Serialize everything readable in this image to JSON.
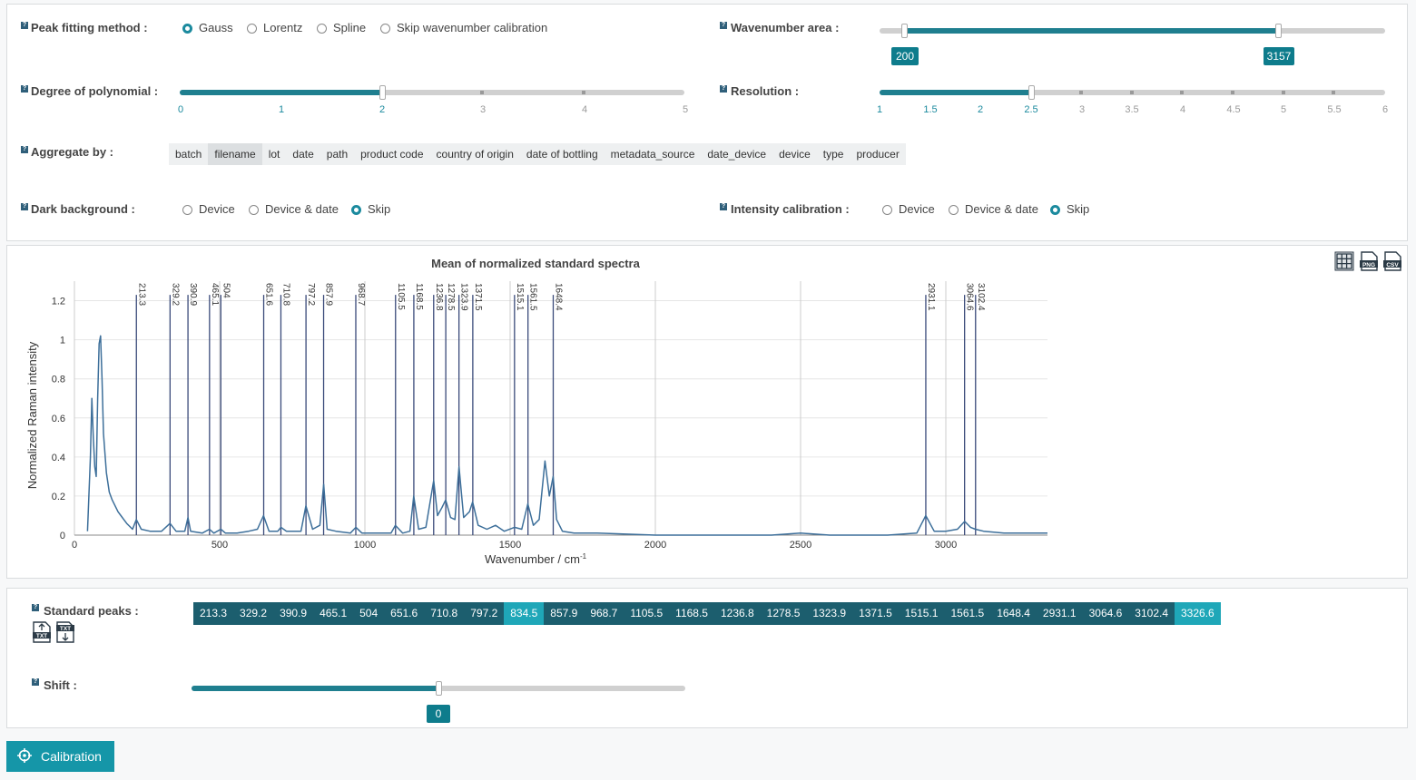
{
  "settings": {
    "peak_fitting": {
      "label": "Peak fitting method :",
      "options": [
        "Gauss",
        "Lorentz",
        "Spline",
        "Skip wavenumber calibration"
      ],
      "selected": "Gauss"
    },
    "wavenumber_area": {
      "label": "Wavenumber area :",
      "min_value": "200",
      "max_value": "3157",
      "range_min": 0,
      "range_max": 4000
    },
    "degree_polynomial": {
      "label": "Degree of polynomial :",
      "value": 2,
      "ticks": [
        "0",
        "1",
        "2",
        "3",
        "4",
        "5"
      ]
    },
    "resolution": {
      "label": "Resolution :",
      "value": 2.5,
      "ticks": [
        "1",
        "1.5",
        "2",
        "2.5",
        "3",
        "3.5",
        "4",
        "4.5",
        "5",
        "5.5",
        "6"
      ]
    },
    "aggregate": {
      "label": "Aggregate by :",
      "options": [
        "batch",
        "filename",
        "lot",
        "date",
        "path",
        "product code",
        "country of origin",
        "date of bottling",
        "metadata_source",
        "date_device",
        "device",
        "type",
        "producer"
      ],
      "selected": "filename"
    },
    "dark_background": {
      "label": "Dark background :",
      "options": [
        "Device",
        "Device & date",
        "Skip"
      ],
      "selected": "Skip"
    },
    "intensity_calibration": {
      "label": "Intensity calibration :",
      "options": [
        "Device",
        "Device & date",
        "Skip"
      ],
      "selected": "Skip"
    }
  },
  "toolbar": {
    "icons": [
      "grid-icon",
      "png-download-icon",
      "csv-download-icon"
    ]
  },
  "chart_data": {
    "type": "line",
    "title": "Mean of normalized standard spectra",
    "xlabel": "Wavenumber / cm-1",
    "ylabel": "Normalized Raman intensity",
    "xlim": [
      0,
      3350
    ],
    "ylim": [
      0,
      1.3
    ],
    "x_ticks": [
      "0",
      "500",
      "1000",
      "1500",
      "2000",
      "2500",
      "3000"
    ],
    "y_ticks": [
      "0",
      "0.2",
      "0.4",
      "0.6",
      "0.8",
      "1",
      "1.2"
    ],
    "grid": true,
    "peak_lines": [
      213.3,
      329.2,
      390.9,
      465.1,
      504,
      651.6,
      710.8,
      797.2,
      857.9,
      968.7,
      1105.5,
      1168.5,
      1236.8,
      1278.5,
      1323.9,
      1371.5,
      1515.1,
      1561.5,
      1648.4,
      2931.1,
      3064.6,
      3102.4
    ],
    "peak_labels": [
      "213.3",
      "329.2",
      "390.9",
      "465.1",
      "504",
      "651.6",
      "710.8",
      "797.2",
      "857.9",
      "968.7",
      "1105.5",
      "1168.5",
      "1236.8",
      "1278.5",
      "1323.9",
      "1371.5",
      "1515.1",
      "1561.5",
      "1648.4",
      "2931.1",
      "3064.6",
      "3102.4"
    ],
    "series": [
      {
        "x": [
          45,
          55,
          60,
          65,
          70,
          75,
          80,
          85,
          90,
          95,
          100,
          110,
          120,
          130,
          140,
          150,
          160,
          170,
          180,
          200,
          213,
          230,
          260,
          300,
          329,
          350,
          380,
          391,
          400,
          440,
          465,
          480,
          504,
          520,
          560,
          600,
          630,
          651,
          670,
          700,
          711,
          730,
          780,
          797,
          820,
          845,
          858,
          870,
          900,
          950,
          969,
          990,
          1050,
          1090,
          1105,
          1130,
          1155,
          1168,
          1185,
          1210,
          1237,
          1250,
          1265,
          1278,
          1295,
          1310,
          1324,
          1340,
          1360,
          1371,
          1390,
          1420,
          1450,
          1480,
          1515,
          1540,
          1561,
          1580,
          1600,
          1620,
          1635,
          1648,
          1660,
          1680,
          1720,
          1800,
          2000,
          2400,
          2500,
          2600,
          2800,
          2900,
          2931,
          2960,
          3000,
          3040,
          3065,
          3085,
          3102,
          3130,
          3200,
          3350
        ],
        "y": [
          0.02,
          0.4,
          0.7,
          0.5,
          0.35,
          0.3,
          0.7,
          0.98,
          1.02,
          0.8,
          0.52,
          0.32,
          0.22,
          0.18,
          0.15,
          0.12,
          0.1,
          0.08,
          0.06,
          0.03,
          0.08,
          0.03,
          0.02,
          0.02,
          0.06,
          0.02,
          0.02,
          0.09,
          0.02,
          0.01,
          0.03,
          0.01,
          0.03,
          0.01,
          0.01,
          0.02,
          0.03,
          0.1,
          0.02,
          0.02,
          0.04,
          0.02,
          0.02,
          0.15,
          0.03,
          0.05,
          0.26,
          0.03,
          0.02,
          0.01,
          0.04,
          0.01,
          0.01,
          0.01,
          0.05,
          0.01,
          0.02,
          0.2,
          0.03,
          0.04,
          0.28,
          0.1,
          0.14,
          0.18,
          0.09,
          0.08,
          0.35,
          0.09,
          0.12,
          0.17,
          0.05,
          0.03,
          0.05,
          0.02,
          0.04,
          0.03,
          0.16,
          0.05,
          0.08,
          0.38,
          0.2,
          0.3,
          0.08,
          0.02,
          0.01,
          0.01,
          0.0,
          0.0,
          0.01,
          0.0,
          0.0,
          0.01,
          0.1,
          0.02,
          0.02,
          0.03,
          0.07,
          0.04,
          0.03,
          0.02,
          0.01,
          0.01
        ]
      }
    ]
  },
  "standard_peaks": {
    "label": "Standard peaks :",
    "values": [
      "213.3",
      "329.2",
      "390.9",
      "465.1",
      "504",
      "651.6",
      "710.8",
      "797.2",
      "834.5",
      "857.9",
      "968.7",
      "1105.5",
      "1168.5",
      "1236.8",
      "1278.5",
      "1323.9",
      "1371.5",
      "1515.1",
      "1561.5",
      "1648.4",
      "2931.1",
      "3064.6",
      "3102.4",
      "3326.6"
    ],
    "highlighted": [
      "834.5",
      "3326.6"
    ],
    "icons": [
      "txt-upload-icon",
      "txt-download-icon"
    ]
  },
  "shift": {
    "label": "Shift :",
    "value": "0",
    "range_min": -50,
    "range_max": 50
  },
  "calibration_button": {
    "label": "Calibration",
    "icon": "crosshair-icon"
  },
  "colors": {
    "accent": "#1b8a9e",
    "slider": "#1f7f8f",
    "tag": "#0e7c8c",
    "peak_chip": "#1c5e6e",
    "peak_chip_highlight": "#1fa7b8",
    "button": "#1596a8",
    "spectrum": "#3d6f9a",
    "peak_line": "#3a4a7a"
  }
}
